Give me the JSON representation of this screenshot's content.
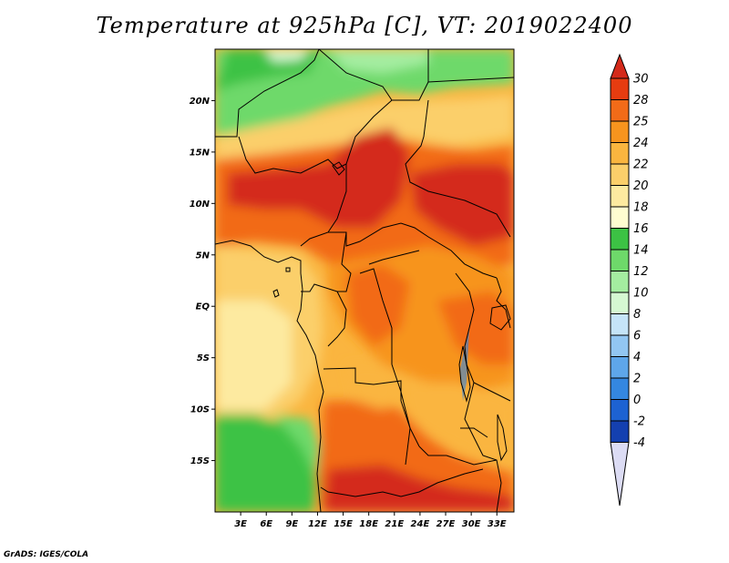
{
  "title": "Temperature at 925hPa [C], VT: 2019022400",
  "credit": "GrADS: IGES/COLA",
  "map": {
    "lon_range": [
      0,
      35
    ],
    "lat_range": [
      -20,
      25
    ],
    "lat_ticks": [
      {
        "label": "20N",
        "lat": 20
      },
      {
        "label": "15N",
        "lat": 15
      },
      {
        "label": "10N",
        "lat": 10
      },
      {
        "label": "5N",
        "lat": 5
      },
      {
        "label": "EQ",
        "lat": 0
      },
      {
        "label": "5S",
        "lat": -5
      },
      {
        "label": "10S",
        "lat": -10
      },
      {
        "label": "15S",
        "lat": -15
      }
    ],
    "lon_ticks": [
      {
        "label": "3E",
        "lon": 3
      },
      {
        "label": "6E",
        "lon": 6
      },
      {
        "label": "9E",
        "lon": 9
      },
      {
        "label": "12E",
        "lon": 12
      },
      {
        "label": "15E",
        "lon": 15
      },
      {
        "label": "18E",
        "lon": 18
      },
      {
        "label": "21E",
        "lon": 21
      },
      {
        "label": "24E",
        "lon": 24
      },
      {
        "label": "27E",
        "lon": 27
      },
      {
        "label": "30E",
        "lon": 30
      },
      {
        "label": "33E",
        "lon": 33
      }
    ]
  },
  "colorbar": {
    "levels": [
      "30",
      "28",
      "25",
      "24",
      "22",
      "20",
      "18",
      "16",
      "14",
      "12",
      "10",
      "8",
      "6",
      "4",
      "2",
      "0",
      "-2",
      "-4"
    ],
    "colors_top_to_bottom": [
      "#d42a1a",
      "#e63c10",
      "#f26b18",
      "#f7941e",
      "#fab53f",
      "#fbcf6a",
      "#fdeaa0",
      "#fffdd0",
      "#3cc244",
      "#6ed96a",
      "#a4eda0",
      "#d5f8d2",
      "#c5e4f8",
      "#92c6f2",
      "#5ea6ea",
      "#3487e0",
      "#1d62d2",
      "#1440b0",
      "#0a1f80"
    ]
  }
}
